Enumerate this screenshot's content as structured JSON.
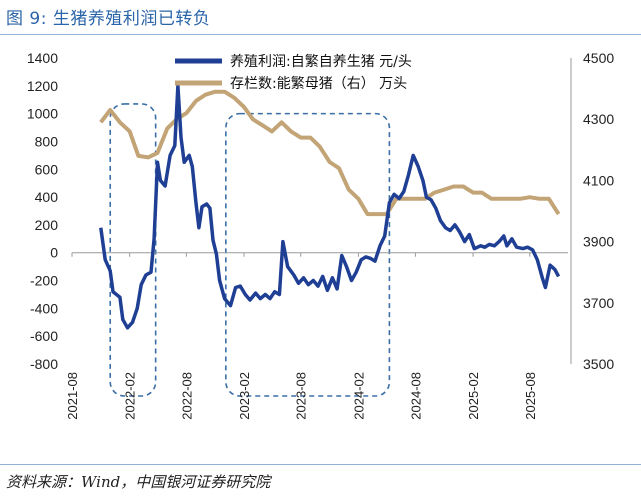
{
  "figure": {
    "title": "图 9:  生猪养殖利润已转负",
    "source": "资料来源：Wind，中国银河证券研究院"
  },
  "colors": {
    "profit": "#1f3f95",
    "inventory": "#c2a477",
    "box": "#3a6ea5",
    "title": "#2a64a8"
  },
  "chart_data": {
    "type": "line",
    "x_ticks": [
      "2021-08",
      "2022-02",
      "2022-08",
      "2023-02",
      "2023-08",
      "2024-02",
      "2024-08",
      "2025-02",
      "2025-08"
    ],
    "x_range": [
      "2021-08",
      "2025-12"
    ],
    "y_left": {
      "range": [
        -800,
        1400
      ],
      "ticks": [
        1400,
        1200,
        1000,
        800,
        600,
        400,
        200,
        0,
        -200,
        -400,
        -600,
        -800
      ]
    },
    "y_right": {
      "range": [
        3500,
        4500
      ],
      "ticks": [
        4500,
        4300,
        4100,
        3900,
        3700,
        3500
      ]
    },
    "series": [
      {
        "name": "养殖利润:自繁自养生猪 元/头",
        "axis": "left",
        "points": [
          [
            "2021-11-01",
            180
          ],
          [
            "2021-11-15",
            -50
          ],
          [
            "2021-12-01",
            -130
          ],
          [
            "2021-12-10",
            -280
          ],
          [
            "2022-01-01",
            -320
          ],
          [
            "2022-01-10",
            -480
          ],
          [
            "2022-01-25",
            -540
          ],
          [
            "2022-02-10",
            -500
          ],
          [
            "2022-02-25",
            -400
          ],
          [
            "2022-03-10",
            -230
          ],
          [
            "2022-03-25",
            -160
          ],
          [
            "2022-04-10",
            -140
          ],
          [
            "2022-04-20",
            100
          ],
          [
            "2022-05-01",
            650
          ],
          [
            "2022-05-10",
            520
          ],
          [
            "2022-05-25",
            480
          ],
          [
            "2022-06-10",
            700
          ],
          [
            "2022-06-25",
            770
          ],
          [
            "2022-07-05",
            1200
          ],
          [
            "2022-07-15",
            830
          ],
          [
            "2022-07-25",
            650
          ],
          [
            "2022-08-10",
            700
          ],
          [
            "2022-08-20",
            620
          ],
          [
            "2022-09-01",
            350
          ],
          [
            "2022-09-10",
            180
          ],
          [
            "2022-09-20",
            330
          ],
          [
            "2022-10-05",
            350
          ],
          [
            "2022-10-15",
            320
          ],
          [
            "2022-10-25",
            90
          ],
          [
            "2022-11-05",
            -10
          ],
          [
            "2022-11-15",
            -200
          ],
          [
            "2022-12-01",
            -330
          ],
          [
            "2022-12-20",
            -380
          ],
          [
            "2023-01-05",
            -250
          ],
          [
            "2023-01-20",
            -240
          ],
          [
            "2023-02-05",
            -300
          ],
          [
            "2023-02-20",
            -340
          ],
          [
            "2023-03-10",
            -290
          ],
          [
            "2023-03-25",
            -330
          ],
          [
            "2023-04-10",
            -300
          ],
          [
            "2023-04-25",
            -330
          ],
          [
            "2023-05-10",
            -280
          ],
          [
            "2023-05-25",
            -300
          ],
          [
            "2023-06-05",
            80
          ],
          [
            "2023-06-20",
            -100
          ],
          [
            "2023-07-10",
            -160
          ],
          [
            "2023-07-25",
            -220
          ],
          [
            "2023-08-10",
            -180
          ],
          [
            "2023-08-25",
            -230
          ],
          [
            "2023-09-10",
            -200
          ],
          [
            "2023-09-25",
            -240
          ],
          [
            "2023-10-10",
            -170
          ],
          [
            "2023-10-25",
            -270
          ],
          [
            "2023-11-10",
            -180
          ],
          [
            "2023-11-25",
            -260
          ],
          [
            "2023-12-10",
            -20
          ],
          [
            "2023-12-25",
            -100
          ],
          [
            "2024-01-10",
            -200
          ],
          [
            "2024-01-25",
            -140
          ],
          [
            "2024-02-10",
            -50
          ],
          [
            "2024-02-25",
            -30
          ],
          [
            "2024-03-10",
            -40
          ],
          [
            "2024-03-25",
            -60
          ],
          [
            "2024-04-10",
            50
          ],
          [
            "2024-04-25",
            120
          ],
          [
            "2024-05-10",
            360
          ],
          [
            "2024-05-25",
            420
          ],
          [
            "2024-06-10",
            390
          ],
          [
            "2024-06-25",
            440
          ],
          [
            "2024-07-10",
            560
          ],
          [
            "2024-07-25",
            700
          ],
          [
            "2024-08-10",
            620
          ],
          [
            "2024-08-25",
            520
          ],
          [
            "2024-09-05",
            400
          ],
          [
            "2024-09-20",
            380
          ],
          [
            "2024-10-05",
            320
          ],
          [
            "2024-10-20",
            230
          ],
          [
            "2024-11-05",
            180
          ],
          [
            "2024-11-20",
            160
          ],
          [
            "2024-12-05",
            200
          ],
          [
            "2024-12-20",
            150
          ],
          [
            "2025-01-05",
            80
          ],
          [
            "2025-01-20",
            130
          ],
          [
            "2025-02-05",
            30
          ],
          [
            "2025-02-25",
            50
          ],
          [
            "2025-03-10",
            40
          ],
          [
            "2025-03-25",
            60
          ],
          [
            "2025-04-10",
            50
          ],
          [
            "2025-04-25",
            80
          ],
          [
            "2025-05-10",
            120
          ],
          [
            "2025-05-20",
            50
          ],
          [
            "2025-06-05",
            100
          ],
          [
            "2025-06-20",
            40
          ],
          [
            "2025-07-10",
            30
          ],
          [
            "2025-07-25",
            40
          ],
          [
            "2025-08-10",
            20
          ],
          [
            "2025-08-25",
            -50
          ],
          [
            "2025-09-10",
            -180
          ],
          [
            "2025-09-20",
            -250
          ],
          [
            "2025-10-05",
            -90
          ],
          [
            "2025-10-20",
            -120
          ],
          [
            "2025-11-01",
            -170
          ]
        ]
      },
      {
        "name": "存栏数:能繁母猪（右） 万头",
        "axis": "right",
        "points": [
          [
            "2021-11-01",
            4290
          ],
          [
            "2021-12-01",
            4330
          ],
          [
            "2022-01-01",
            4290
          ],
          [
            "2022-02-01",
            4260
          ],
          [
            "2022-03-01",
            4180
          ],
          [
            "2022-04-01",
            4175
          ],
          [
            "2022-05-01",
            4190
          ],
          [
            "2022-06-01",
            4270
          ],
          [
            "2022-07-01",
            4300
          ],
          [
            "2022-08-01",
            4320
          ],
          [
            "2022-09-01",
            4360
          ],
          [
            "2022-10-01",
            4380
          ],
          [
            "2022-11-01",
            4390
          ],
          [
            "2022-12-01",
            4390
          ],
          [
            "2023-01-01",
            4370
          ],
          [
            "2023-02-01",
            4340
          ],
          [
            "2023-03-01",
            4300
          ],
          [
            "2023-04-01",
            4280
          ],
          [
            "2023-05-01",
            4260
          ],
          [
            "2023-06-01",
            4290
          ],
          [
            "2023-07-01",
            4260
          ],
          [
            "2023-08-01",
            4240
          ],
          [
            "2023-09-01",
            4240
          ],
          [
            "2023-10-01",
            4210
          ],
          [
            "2023-11-01",
            4160
          ],
          [
            "2023-12-01",
            4140
          ],
          [
            "2024-01-01",
            4070
          ],
          [
            "2024-02-01",
            4040
          ],
          [
            "2024-03-01",
            3990
          ],
          [
            "2024-04-01",
            3990
          ],
          [
            "2024-05-01",
            3990
          ],
          [
            "2024-06-01",
            4040
          ],
          [
            "2024-07-01",
            4040
          ],
          [
            "2024-08-01",
            4040
          ],
          [
            "2024-09-01",
            4040
          ],
          [
            "2024-10-01",
            4060
          ],
          [
            "2024-11-01",
            4070
          ],
          [
            "2024-12-01",
            4080
          ],
          [
            "2025-01-01",
            4080
          ],
          [
            "2025-02-01",
            4060
          ],
          [
            "2025-03-01",
            4060
          ],
          [
            "2025-04-01",
            4040
          ],
          [
            "2025-05-01",
            4040
          ],
          [
            "2025-06-01",
            4040
          ],
          [
            "2025-07-01",
            4040
          ],
          [
            "2025-08-01",
            4045
          ],
          [
            "2025-09-01",
            4040
          ],
          [
            "2025-10-01",
            4040
          ],
          [
            "2025-11-01",
            3990
          ]
        ]
      }
    ],
    "highlight_boxes": [
      {
        "from": "2021-12-01",
        "to": "2022-04-25",
        "ymin_left": -800,
        "ymax_left": 1070
      },
      {
        "from": "2022-12-05",
        "to": "2024-05-10",
        "ymin_left": -800,
        "ymax_left": 1000
      }
    ]
  }
}
